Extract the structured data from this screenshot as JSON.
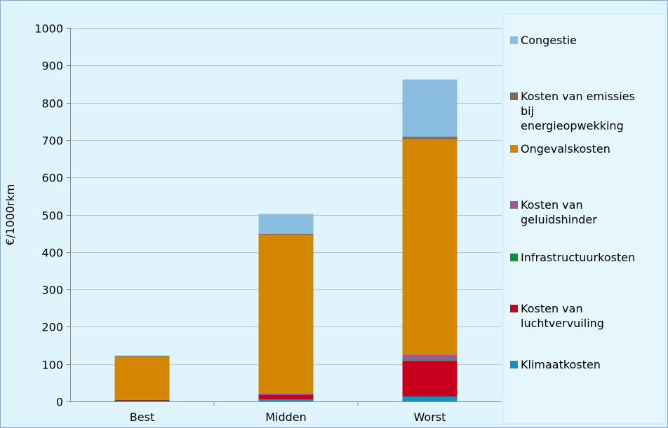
{
  "chart_data": {
    "type": "bar",
    "stacked": true,
    "title": "",
    "xlabel": "",
    "ylabel": "€/1000rkm",
    "ylim": [
      0,
      1000
    ],
    "yticks": [
      0,
      100,
      200,
      300,
      400,
      500,
      600,
      700,
      800,
      900,
      1000
    ],
    "grid": "horizontal",
    "legend_position": "right",
    "categories": [
      "Best",
      "Midden",
      "Worst"
    ],
    "series": [
      {
        "name": "Klimaatkosten",
        "color": "#1a8fc2",
        "values": [
          1,
          5,
          13
        ]
      },
      {
        "name": "Kosten van luchtvervuiling",
        "color": "#c8001e",
        "values": [
          3,
          12,
          95
        ]
      },
      {
        "name": "Infrastructuurkosten",
        "color": "#1a8a3a",
        "values": [
          0,
          2,
          2
        ]
      },
      {
        "name": "Kosten van geluidshinder",
        "color": "#9a5a96",
        "values": [
          0,
          3,
          15
        ]
      },
      {
        "name": "Ongevalskosten",
        "color": "#d38600",
        "values": [
          115,
          424,
          577
        ]
      },
      {
        "name": "Kosten van emissies bij energieopwekking",
        "color": "#7d6a58",
        "values": [
          2,
          3,
          7
        ]
      },
      {
        "name": "Congestie",
        "color": "#8bbde1",
        "values": [
          2,
          53,
          153
        ]
      }
    ],
    "legend_labels": [
      {
        "series": 6,
        "lines": [
          "Congestie"
        ]
      },
      {
        "series": 5,
        "lines": [
          "Kosten van emissies",
          "bij",
          "energieopwekking"
        ]
      },
      {
        "series": 4,
        "lines": [
          "Ongevalskosten"
        ]
      },
      {
        "series": 3,
        "lines": [
          "Kosten van",
          "geluidshinder"
        ]
      },
      {
        "series": 2,
        "lines": [
          "Infrastructuurkosten"
        ]
      },
      {
        "series": 1,
        "lines": [
          "Kosten van",
          "luchtvervuiling"
        ]
      },
      {
        "series": 0,
        "lines": [
          "Klimaatkosten"
        ]
      }
    ]
  }
}
